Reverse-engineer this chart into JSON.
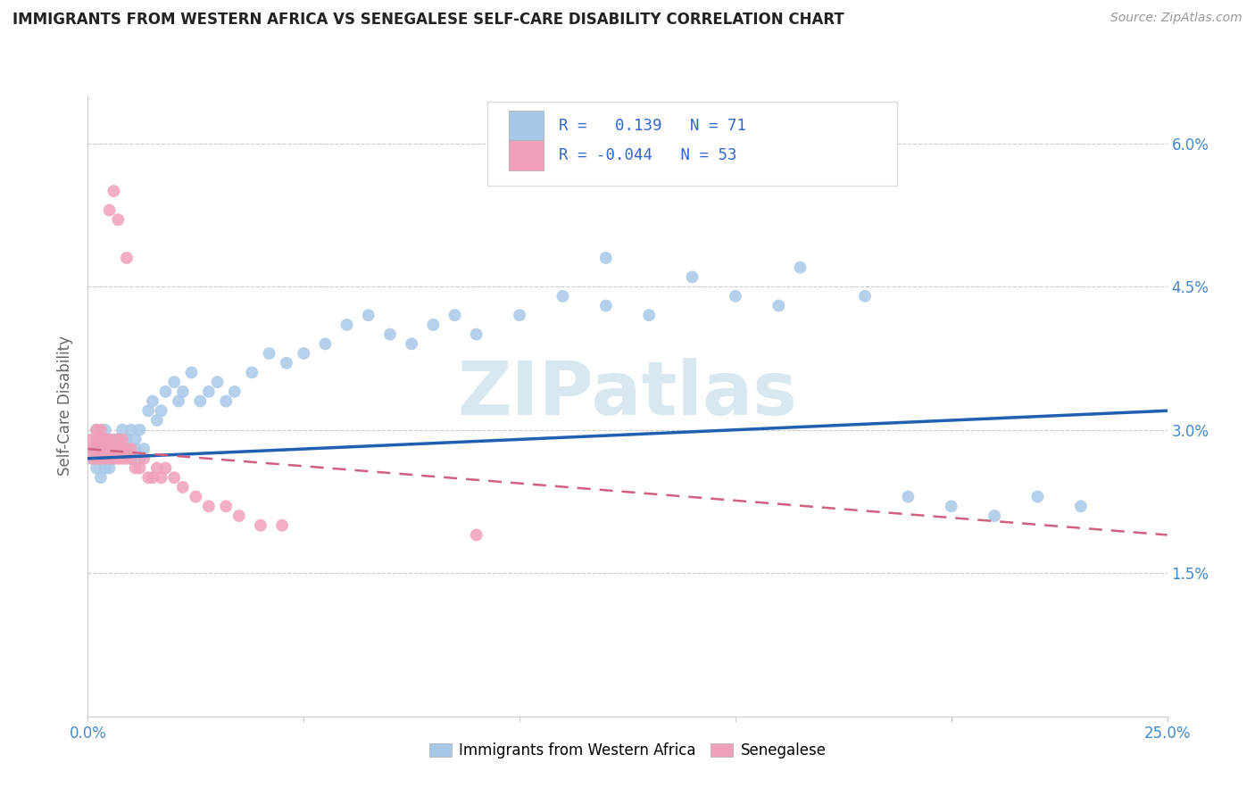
{
  "title": "IMMIGRANTS FROM WESTERN AFRICA VS SENEGALESE SELF-CARE DISABILITY CORRELATION CHART",
  "source": "Source: ZipAtlas.com",
  "ylabel": "Self-Care Disability",
  "xlim": [
    0.0,
    0.25
  ],
  "ylim": [
    0.0,
    0.065
  ],
  "r1": 0.139,
  "n1": 71,
  "r2": -0.044,
  "n2": 53,
  "color_blue": "#A8C8E8",
  "color_pink": "#F0A0B8",
  "color_line_blue": "#2060B0",
  "color_line_pink": "#D06080",
  "watermark_text": "ZIPatlas",
  "watermark_color": "#D8E8F0",
  "legend1_label": "Immigrants from Western Africa",
  "legend2_label": "Senegalese",
  "blue_x": [
    0.001,
    0.001,
    0.002,
    0.002,
    0.002,
    0.003,
    0.003,
    0.003,
    0.004,
    0.004,
    0.004,
    0.005,
    0.005,
    0.005,
    0.006,
    0.006,
    0.006,
    0.007,
    0.007,
    0.008,
    0.008,
    0.009,
    0.009,
    0.01,
    0.01,
    0.011,
    0.011,
    0.012,
    0.012,
    0.013,
    0.014,
    0.015,
    0.016,
    0.017,
    0.018,
    0.02,
    0.021,
    0.022,
    0.024,
    0.026,
    0.028,
    0.03,
    0.032,
    0.034,
    0.038,
    0.042,
    0.046,
    0.05,
    0.055,
    0.06,
    0.065,
    0.07,
    0.075,
    0.08,
    0.085,
    0.09,
    0.1,
    0.11,
    0.12,
    0.13,
    0.15,
    0.16,
    0.18,
    0.2,
    0.21,
    0.22,
    0.23,
    0.12,
    0.14,
    0.165,
    0.19
  ],
  "blue_y": [
    0.028,
    0.027,
    0.029,
    0.026,
    0.03,
    0.027,
    0.028,
    0.025,
    0.029,
    0.026,
    0.03,
    0.027,
    0.028,
    0.026,
    0.029,
    0.027,
    0.028,
    0.028,
    0.029,
    0.03,
    0.028,
    0.029,
    0.028,
    0.03,
    0.027,
    0.028,
    0.029,
    0.03,
    0.027,
    0.028,
    0.032,
    0.033,
    0.031,
    0.032,
    0.034,
    0.035,
    0.033,
    0.034,
    0.036,
    0.033,
    0.034,
    0.035,
    0.033,
    0.034,
    0.036,
    0.038,
    0.037,
    0.038,
    0.039,
    0.041,
    0.042,
    0.04,
    0.039,
    0.041,
    0.042,
    0.04,
    0.042,
    0.044,
    0.043,
    0.042,
    0.044,
    0.043,
    0.044,
    0.022,
    0.021,
    0.023,
    0.022,
    0.048,
    0.046,
    0.047,
    0.023
  ],
  "pink_x": [
    0.001,
    0.001,
    0.001,
    0.002,
    0.002,
    0.002,
    0.002,
    0.003,
    0.003,
    0.003,
    0.003,
    0.004,
    0.004,
    0.004,
    0.004,
    0.005,
    0.005,
    0.005,
    0.005,
    0.006,
    0.006,
    0.006,
    0.007,
    0.007,
    0.007,
    0.008,
    0.008,
    0.008,
    0.009,
    0.009,
    0.01,
    0.01,
    0.011,
    0.012,
    0.013,
    0.014,
    0.015,
    0.016,
    0.017,
    0.018,
    0.02,
    0.022,
    0.025,
    0.028,
    0.032,
    0.035,
    0.04,
    0.045,
    0.09,
    0.005,
    0.006,
    0.007,
    0.009
  ],
  "pink_y": [
    0.028,
    0.027,
    0.029,
    0.03,
    0.028,
    0.029,
    0.027,
    0.028,
    0.029,
    0.027,
    0.03,
    0.028,
    0.029,
    0.027,
    0.028,
    0.029,
    0.028,
    0.027,
    0.029,
    0.028,
    0.027,
    0.028,
    0.028,
    0.029,
    0.027,
    0.028,
    0.029,
    0.027,
    0.028,
    0.027,
    0.028,
    0.027,
    0.026,
    0.026,
    0.027,
    0.025,
    0.025,
    0.026,
    0.025,
    0.026,
    0.025,
    0.024,
    0.023,
    0.022,
    0.022,
    0.021,
    0.02,
    0.02,
    0.019,
    0.053,
    0.055,
    0.052,
    0.048
  ],
  "blue_line_x": [
    0.0,
    0.25
  ],
  "blue_line_y": [
    0.027,
    0.032
  ],
  "pink_line_x": [
    0.0,
    0.25
  ],
  "pink_line_y": [
    0.028,
    0.019
  ]
}
